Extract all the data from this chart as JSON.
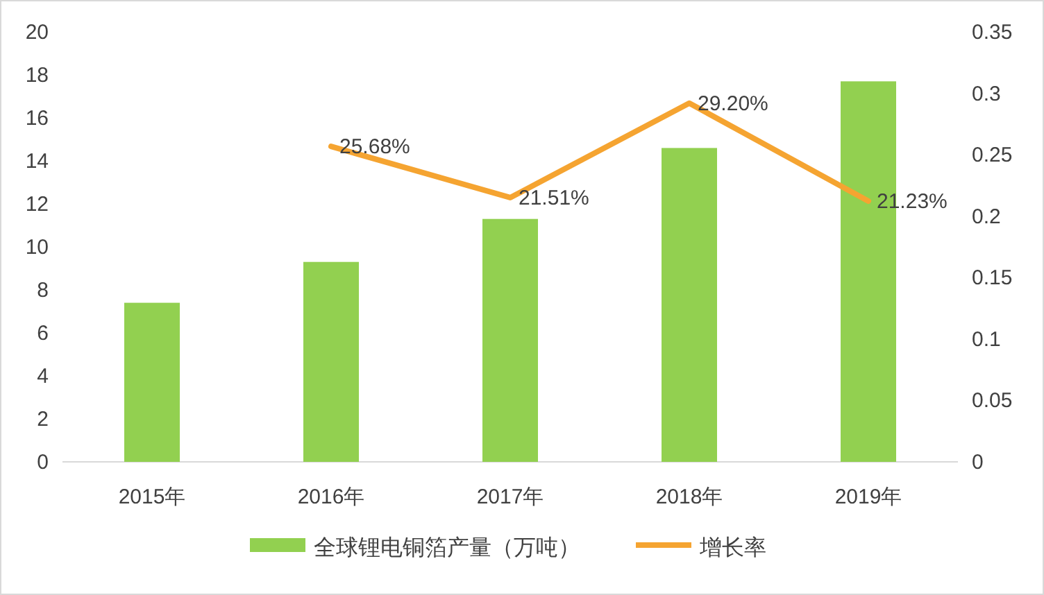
{
  "chart_data": {
    "type": "bar",
    "categories": [
      "2015年",
      "2016年",
      "2017年",
      "2018年",
      "2019年"
    ],
    "series": [
      {
        "name": "全球锂电铜箔产量（万吨）",
        "color": "#92d050",
        "values": [
          7.4,
          9.3,
          11.3,
          14.6,
          17.7
        ]
      },
      {
        "name": "增长率",
        "type": "line",
        "axis": "y2",
        "color": "#f5a431",
        "values": [
          null,
          0.2568,
          0.2151,
          0.292,
          0.2123
        ],
        "value_labels": [
          null,
          "25.68%",
          "21.51%",
          "29.20%",
          "21.23%"
        ]
      }
    ],
    "ylim": [
      0,
      20
    ],
    "yticks": [
      0,
      2,
      4,
      6,
      8,
      10,
      12,
      14,
      16,
      18,
      20
    ],
    "y2lim": [
      0,
      0.35
    ],
    "y2ticks": [
      0,
      0.05,
      0.1,
      0.15,
      0.2,
      0.25,
      0.3,
      0.35
    ],
    "grid": false,
    "legend": "bottom",
    "marker": "none"
  }
}
